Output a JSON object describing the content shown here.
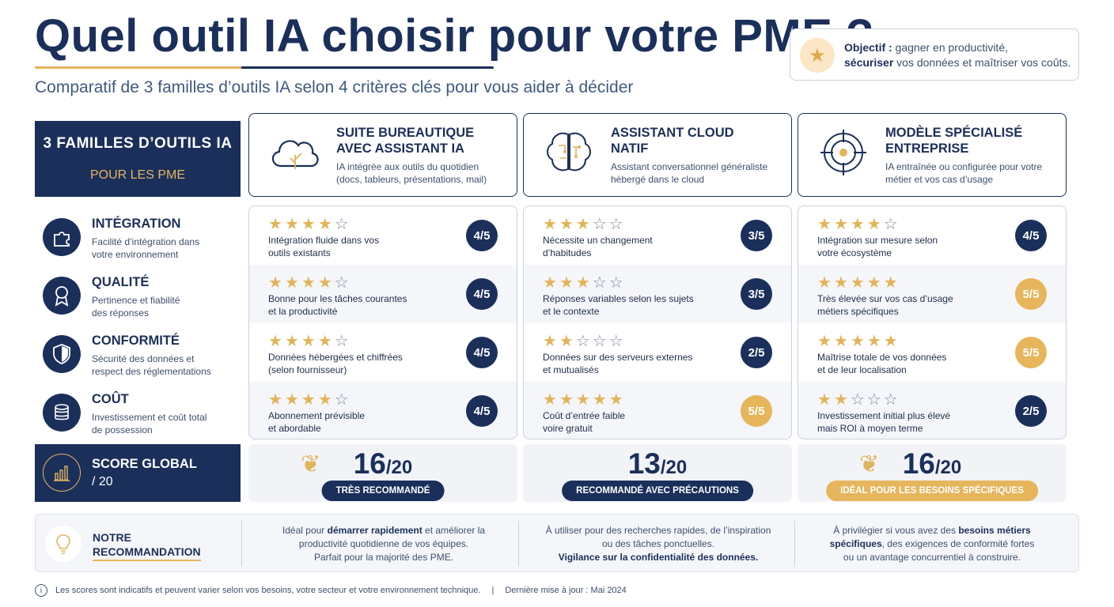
{
  "header": {
    "title": "Quel outil IA choisir pour votre PME ?",
    "subtitle": "Comparatif de 3 familles d’outils IA selon 4 critères clés pour vous aider à décider",
    "objective_bold1": "Objectif :",
    "objective_text1": " gagner en productivité,",
    "objective_bold2": "sécuriser",
    "objective_text2": " vos données et maîtriser vos coûts.",
    "objective_icon": "star-icon"
  },
  "families_head": {
    "line1": "3 FAMILLES D’OUTILS IA",
    "line2": "POUR LES PME"
  },
  "families": [
    {
      "name1": "SUITE BUREAUTIQUE",
      "name2": "AVEC ASSISTANT IA",
      "desc1": "IA intégrée aux outils du quotidien",
      "desc2": "(docs, tableurs, présentations, mail)",
      "icon": "cloud-icon"
    },
    {
      "name1": "ASSISTANT CLOUD",
      "name2": "NATIF",
      "desc1": "Assistant conversationnel généraliste",
      "desc2": "hébergé dans le cloud",
      "icon": "brain-circuit-icon"
    },
    {
      "name1": "MODÈLE SPÉCIALISÉ",
      "name2": "ENTREPRISE",
      "desc1": "IA entraînée ou configurée pour votre",
      "desc2": "métier et vos cas d’usage",
      "icon": "target-icon"
    }
  ],
  "criteria": [
    {
      "title": "INTÉGRATION",
      "desc1": "Facilité d’intégration dans",
      "desc2": "votre environnement",
      "icon": "puzzle-icon"
    },
    {
      "title": "QUALITÉ",
      "desc1": "Pertinence et fiabilité",
      "desc2": "des réponses",
      "icon": "award-icon"
    },
    {
      "title": "CONFORMITÉ",
      "desc1": "Sécurité des données et",
      "desc2": "respect des réglementations",
      "icon": "shield-icon"
    },
    {
      "title": "COÛT",
      "desc1": "Investissement et coût total",
      "desc2": "de possession",
      "icon": "coins-icon"
    }
  ],
  "ratings": [
    [
      {
        "stars": 4,
        "t1": "Intégration fluide dans vos",
        "t2": "outils existants",
        "score": "4/5"
      },
      {
        "stars": 4,
        "t1": "Bonne pour les tâches courantes",
        "t2": "et la productivité",
        "score": "4/5"
      },
      {
        "stars": 4,
        "t1": "Données hébergées et chiffrées",
        "t2": "(selon fournisseur)",
        "score": "4/5"
      },
      {
        "stars": 4,
        "t1": "Abonnement prévisible",
        "t2": "et abordable",
        "score": "4/5"
      }
    ],
    [
      {
        "stars": 3,
        "t1": "Nécessite un changement",
        "t2": "d’habitudes",
        "score": "3/5"
      },
      {
        "stars": 3,
        "t1": "Réponses variables selon les sujets",
        "t2": "et le contexte",
        "score": "3/5"
      },
      {
        "stars": 2,
        "t1": "Données sur des serveurs externes",
        "t2": "et mutualisés",
        "score": "2/5"
      },
      {
        "stars": 5,
        "t1": "Coût d’entrée faible",
        "t2": "voire gratuit",
        "score": "5/5"
      }
    ],
    [
      {
        "stars": 4,
        "t1": "Intégration sur mesure selon",
        "t2": "votre écosystème",
        "score": "4/5"
      },
      {
        "stars": 5,
        "t1": "Très élevée sur vos cas d’usage",
        "t2": "métiers spécifiques",
        "score": "5/5"
      },
      {
        "stars": 5,
        "t1": "Maîtrise totale de vos données",
        "t2": "et de leur localisation",
        "score": "5/5"
      },
      {
        "stars": 2,
        "t1": "Investissement initial plus élevé",
        "t2": "mais ROI à moyen terme",
        "score": "2/5"
      }
    ]
  ],
  "score_head": {
    "title": "SCORE GLOBAL",
    "sub": "/ 20",
    "icon": "bar-chart-icon"
  },
  "scores": [
    {
      "value": "16",
      "max": "/20",
      "label": "TRÈS RECOMMANDÉ",
      "laurel": true,
      "gold": false
    },
    {
      "value": "13",
      "max": "/20",
      "label": "RECOMMANDÉ AVEC PRÉCAUTIONS",
      "laurel": false,
      "gold": false
    },
    {
      "value": "16",
      "max": "/20",
      "label": "IDÉAL POUR LES BESOINS SPÉCIFIQUES",
      "laurel": true,
      "gold": true
    }
  ],
  "recommendation": {
    "title1": "NOTRE",
    "title2": "RECOMMANDATION",
    "icon": "lightbulb-icon",
    "col1": {
      "a": "Idéal pour ",
      "b": "démarrer rapidement",
      "c": " et améliorer la",
      "d": "productivité quotidienne de vos équipes.",
      "e": "Parfait pour la majorité des PME."
    },
    "col2": {
      "a": "À utiliser pour des recherches rapides, de l’inspiration",
      "b": "ou des tâches ponctuelles.",
      "c": "Vigilance sur la confidentialité des données."
    },
    "col3": {
      "a": "À privilégier si vous avez des ",
      "b": "besoins métiers",
      "c": "spécifiques",
      "d": ", des exigences de conformité fortes",
      "e": "ou un avantage concurrentiel à construire."
    }
  },
  "footer": {
    "note": "Les scores sont indicatifs et peuvent varier selon vos besoins, votre secteur et votre environnement technique.",
    "separator": "|",
    "updated": "Dernière mise à jour : Mai 2024",
    "info_glyph": "i"
  },
  "colors": {
    "navy": "#1b2f5b",
    "gold": "#e6b55c"
  }
}
